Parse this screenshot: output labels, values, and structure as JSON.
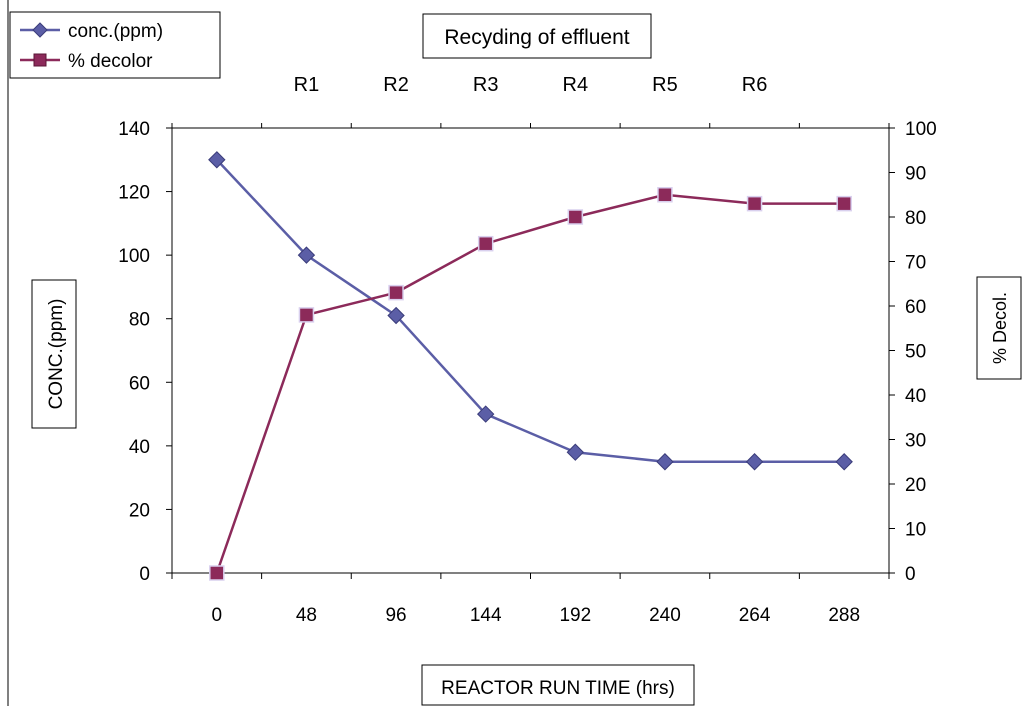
{
  "chart_data": {
    "type": "line",
    "title": "Recyding of effluent",
    "xlabel": "REACTOR RUN TIME (hrs)",
    "ylabel": "CONC.(ppm)",
    "y2label": "% Decol.",
    "categories": [
      "0",
      "48",
      "96",
      "144",
      "192",
      "240",
      "264",
      "288"
    ],
    "top_labels": [
      "R1",
      "R2",
      "R3",
      "R4",
      "R5",
      "R6"
    ],
    "ylim": [
      0,
      140
    ],
    "y2lim": [
      0,
      100
    ],
    "yticks": [
      0,
      20,
      40,
      60,
      80,
      100,
      120,
      140
    ],
    "y2ticks": [
      0,
      10,
      20,
      30,
      40,
      50,
      60,
      70,
      80,
      90,
      100
    ],
    "grid": false,
    "legend_position": "top-left",
    "series": [
      {
        "name": "conc.(ppm)",
        "axis": "left",
        "marker": "diamond",
        "color": "#5b5ea6",
        "values": [
          130,
          100,
          81,
          50,
          38,
          35,
          35,
          35
        ]
      },
      {
        "name": "% decolor",
        "axis": "right",
        "marker": "square",
        "color": "#8c2a5a",
        "values": [
          0,
          58,
          63,
          74,
          80,
          85,
          83,
          83
        ]
      }
    ]
  }
}
